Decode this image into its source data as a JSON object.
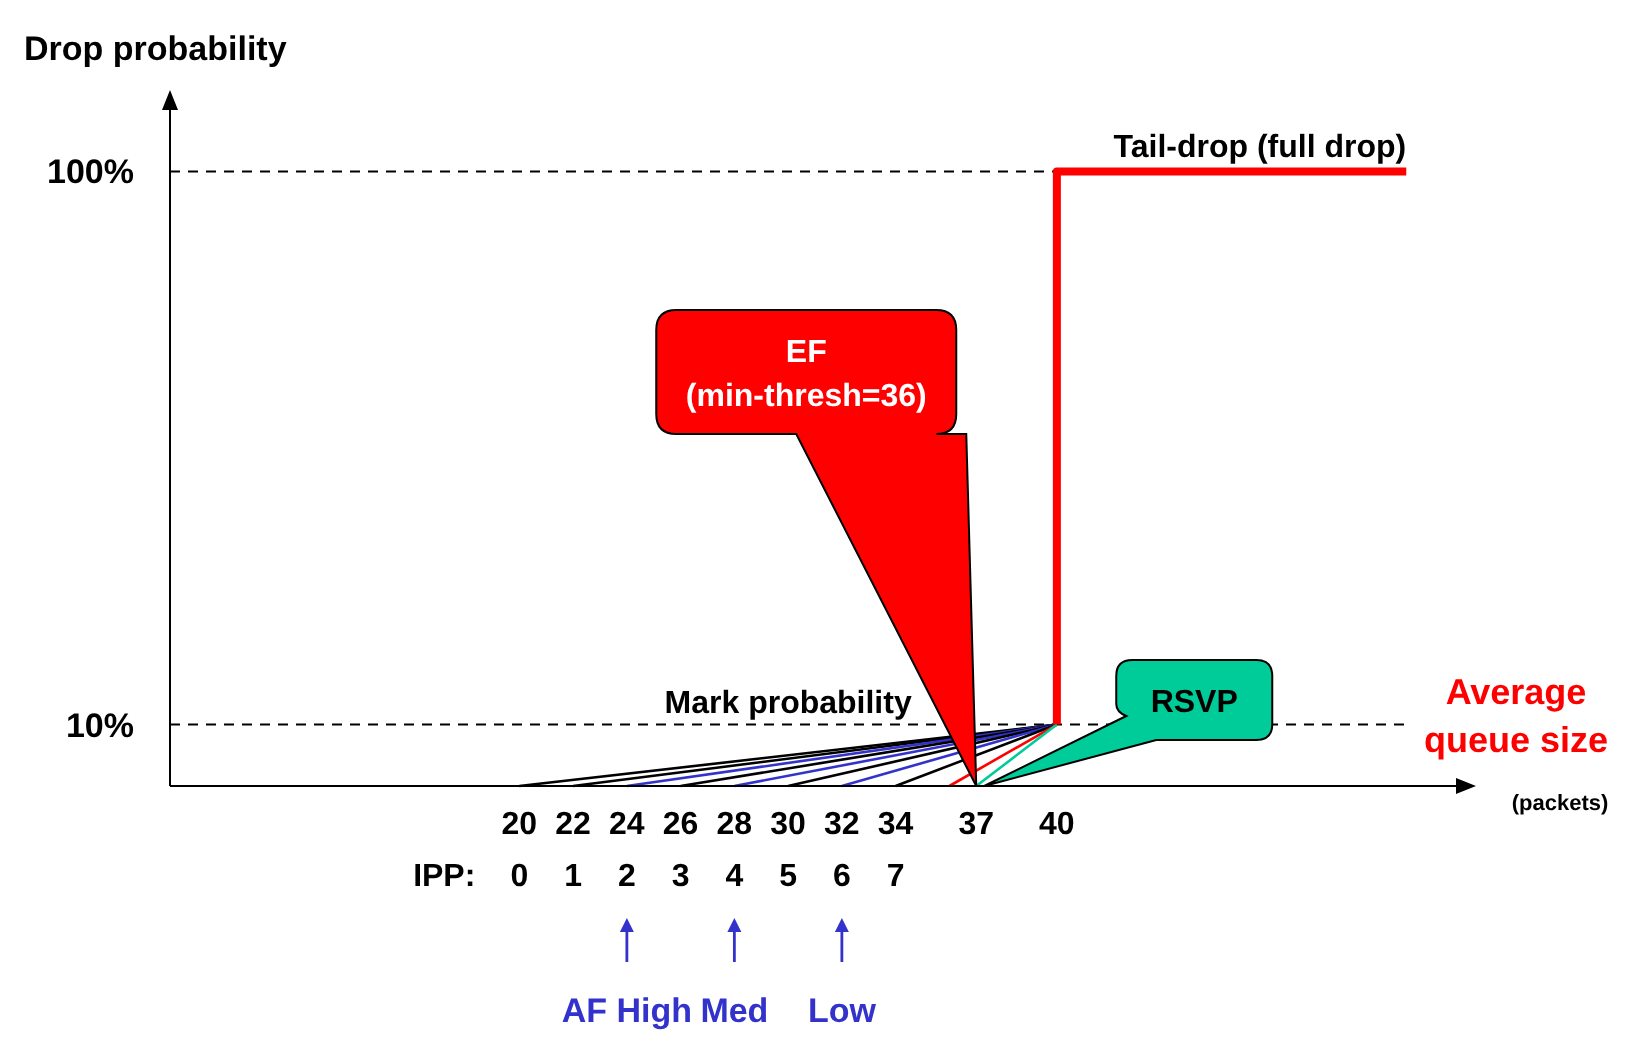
{
  "chart_data": {
    "type": "line",
    "ylabel": "Drop probability",
    "xlabel": "Average queue size",
    "xlim": [
      7,
      55
    ],
    "ylim": [
      0,
      110
    ],
    "xticks": [
      20,
      22,
      24,
      26,
      28,
      30,
      32,
      34,
      37,
      40
    ],
    "yticks": [
      {
        "value": 10,
        "label": "10%"
      },
      {
        "value": 100,
        "label": "100%"
      }
    ],
    "series": [
      {
        "color": "#000000",
        "x": [
          20,
          40
        ],
        "values": [
          0,
          10
        ]
      },
      {
        "color": "#000000",
        "x": [
          22,
          40
        ],
        "values": [
          0,
          10
        ]
      },
      {
        "color": "#3333cc",
        "x": [
          24,
          40
        ],
        "values": [
          0,
          10
        ]
      },
      {
        "color": "#000000",
        "x": [
          26,
          40
        ],
        "values": [
          0,
          10
        ]
      },
      {
        "color": "#3333cc",
        "x": [
          28,
          40
        ],
        "values": [
          0,
          10
        ]
      },
      {
        "color": "#000000",
        "x": [
          30,
          40
        ],
        "values": [
          0,
          10
        ]
      },
      {
        "color": "#3333cc",
        "x": [
          32,
          40
        ],
        "values": [
          0,
          10
        ]
      },
      {
        "color": "#000000",
        "x": [
          34,
          40
        ],
        "values": [
          0,
          10
        ]
      },
      {
        "color": "#ff0000",
        "x": [
          36,
          40
        ],
        "values": [
          0,
          10
        ]
      },
      {
        "color": "#00cc99",
        "x": [
          37,
          40
        ],
        "values": [
          0,
          10
        ]
      },
      {
        "color": "#ff0000",
        "x": [
          40,
          40,
          53
        ],
        "values": [
          10,
          100,
          100
        ]
      }
    ],
    "ref_lines": [
      {
        "axis": "y",
        "value": 10,
        "label": "Mark probability",
        "line_style": "dashed"
      },
      {
        "axis": "y",
        "value": 100,
        "line_style": "dashed"
      }
    ],
    "annotations": [
      "(packets)",
      "EF\n(min-thresh=36)",
      "RSVP",
      "IPP:",
      "0",
      "1",
      "2",
      "3",
      "4",
      "5",
      "6",
      "7",
      "AF High",
      "Med",
      "Low",
      {
        "text": "Tail-drop (full drop)",
        "x": 53,
        "y": 100
      }
    ],
    "grid": false,
    "marker": "none",
    "line_style": "solid"
  }
}
